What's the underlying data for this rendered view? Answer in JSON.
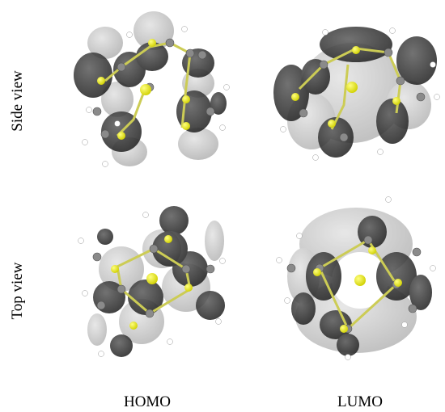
{
  "rows": {
    "side": "Side view",
    "top": "Top view"
  },
  "columns": {
    "homo": "HOMO",
    "lumo": "LUMO"
  },
  "colors": {
    "lobe_dark": "#3a3a3a",
    "lobe_light": "#c8c8c8",
    "atom_carbon": "#8a8a8a",
    "atom_hydrogen": "#ffffff",
    "atom_sulfur": "#e6e600",
    "bond": "#cccc55"
  }
}
